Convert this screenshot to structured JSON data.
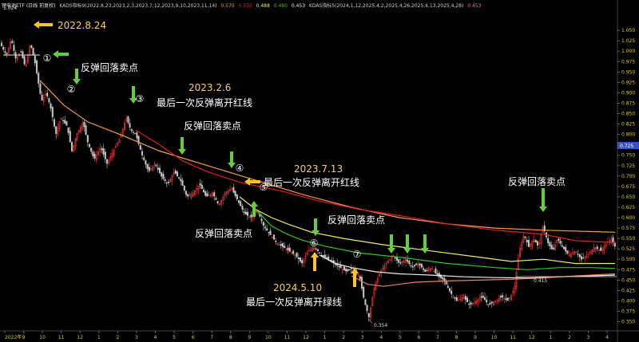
{
  "header": {
    "title": "锂电池ETF (日线 前复权)",
    "indicator_a": "KADS指标9(2022,8,23,2023,2,3,2023,7,12,2023,9,10,2023,11,14)",
    "a_val1": "0.575",
    "a_val2": "0.555",
    "a_val3": "0.488",
    "a_val4": "0.480",
    "a_val5": "0.453",
    "indicator_b": "KDAS指标5(2024,1,12,2025,4,2,2025,4,26,2025,4,13,2025,4,28)",
    "b_val1": "0.453"
  },
  "colors": {
    "background": "#000000",
    "candle_up": "#ff3b3b",
    "candle_down": "#c9c9c9",
    "line_orange": "#f39c4a",
    "line_red": "#e02020",
    "line_yellow": "#f0f050",
    "line_green": "#28c828",
    "line_white": "#eeeeee",
    "line_salmon": "#f08060",
    "annotation_text": "#ffd24a",
    "arrow_green": "#66cc44",
    "arrow_yellow": "#ffc51f",
    "axis_text": "#d9c84c",
    "price_tag": "#3a4fd0"
  },
  "chart_data": {
    "type": "candlestick",
    "y_axis": {
      "side": "right",
      "ylim": [
        0.33,
        1.1
      ],
      "ticks": [
        "1.050",
        "1.025",
        "1.000",
        "0.975",
        "0.950",
        "0.925",
        "0.900",
        "0.875",
        "0.850",
        "0.825",
        "0.800",
        "0.775",
        "0.750",
        "0.725",
        "0.700",
        "0.675",
        "0.650",
        "0.625",
        "0.600",
        "0.575",
        "0.550",
        "0.525",
        "0.500",
        "0.475",
        "0.450",
        "0.425",
        "0.400",
        "0.375",
        "0.350"
      ]
    },
    "x_axis": {
      "month_labels": [
        "2022年",
        "9",
        "10",
        "11",
        "12",
        "1",
        "2",
        "3",
        "4",
        "5",
        "6",
        "7",
        "8",
        "9",
        "10",
        "11",
        "12",
        "1",
        "2",
        "3",
        "4",
        "5",
        "6",
        "7",
        "8",
        "9",
        "10",
        "11",
        "12",
        "1",
        "2",
        "3",
        "4"
      ]
    },
    "current_price_tag": "0.725",
    "peak_label": "1.024",
    "low_label": "0.354",
    "low2_label": "0.415",
    "price_path": [
      [
        0,
        1.02
      ],
      [
        8,
        0.99
      ],
      [
        14,
        1.03
      ],
      [
        20,
        0.98
      ],
      [
        26,
        1.0
      ],
      [
        32,
        0.96
      ],
      [
        38,
        1.02
      ],
      [
        44,
        0.97
      ],
      [
        52,
        0.88
      ],
      [
        58,
        0.9
      ],
      [
        64,
        0.86
      ],
      [
        70,
        0.8
      ],
      [
        76,
        0.84
      ],
      [
        84,
        0.82
      ],
      [
        90,
        0.76
      ],
      [
        96,
        0.8
      ],
      [
        104,
        0.83
      ],
      [
        110,
        0.78
      ],
      [
        118,
        0.74
      ],
      [
        126,
        0.77
      ],
      [
        134,
        0.73
      ],
      [
        142,
        0.76
      ],
      [
        150,
        0.79
      ],
      [
        158,
        0.84
      ],
      [
        164,
        0.81
      ],
      [
        170,
        0.8
      ],
      [
        178,
        0.75
      ],
      [
        186,
        0.71
      ],
      [
        194,
        0.73
      ],
      [
        202,
        0.7
      ],
      [
        210,
        0.68
      ],
      [
        218,
        0.71
      ],
      [
        226,
        0.69
      ],
      [
        234,
        0.65
      ],
      [
        242,
        0.66
      ],
      [
        250,
        0.68
      ],
      [
        258,
        0.65
      ],
      [
        266,
        0.66
      ],
      [
        274,
        0.63
      ],
      [
        282,
        0.66
      ],
      [
        290,
        0.67
      ],
      [
        298,
        0.64
      ],
      [
        306,
        0.61
      ],
      [
        314,
        0.6
      ],
      [
        322,
        0.62
      ],
      [
        330,
        0.58
      ],
      [
        338,
        0.56
      ],
      [
        346,
        0.54
      ],
      [
        354,
        0.53
      ],
      [
        362,
        0.52
      ],
      [
        370,
        0.51
      ],
      [
        378,
        0.49
      ],
      [
        386,
        0.52
      ],
      [
        394,
        0.53
      ],
      [
        402,
        0.51
      ],
      [
        410,
        0.5
      ],
      [
        418,
        0.49
      ],
      [
        426,
        0.48
      ],
      [
        434,
        0.47
      ],
      [
        442,
        0.48
      ],
      [
        450,
        0.46
      ],
      [
        456,
        0.4
      ],
      [
        462,
        0.36
      ],
      [
        468,
        0.43
      ],
      [
        476,
        0.47
      ],
      [
        484,
        0.49
      ],
      [
        492,
        0.51
      ],
      [
        500,
        0.49
      ],
      [
        508,
        0.5
      ],
      [
        516,
        0.48
      ],
      [
        524,
        0.49
      ],
      [
        532,
        0.47
      ],
      [
        540,
        0.48
      ],
      [
        548,
        0.46
      ],
      [
        556,
        0.45
      ],
      [
        564,
        0.42
      ],
      [
        572,
        0.4
      ],
      [
        580,
        0.41
      ],
      [
        588,
        0.39
      ],
      [
        596,
        0.4
      ],
      [
        604,
        0.41
      ],
      [
        612,
        0.39
      ],
      [
        620,
        0.4
      ],
      [
        628,
        0.41
      ],
      [
        636,
        0.4
      ],
      [
        644,
        0.43
      ],
      [
        650,
        0.52
      ],
      [
        656,
        0.56
      ],
      [
        662,
        0.53
      ],
      [
        668,
        0.55
      ],
      [
        674,
        0.53
      ],
      [
        680,
        0.58
      ],
      [
        686,
        0.54
      ],
      [
        692,
        0.52
      ],
      [
        698,
        0.55
      ],
      [
        704,
        0.53
      ],
      [
        712,
        0.51
      ],
      [
        720,
        0.52
      ],
      [
        728,
        0.5
      ],
      [
        736,
        0.51
      ],
      [
        744,
        0.53
      ],
      [
        752,
        0.52
      ],
      [
        760,
        0.54
      ],
      [
        766,
        0.55
      ],
      [
        770,
        0.53
      ]
    ],
    "ma_lines": [
      {
        "color_key": "line_orange",
        "points": [
          [
            50,
            0.93
          ],
          [
            80,
            0.87
          ],
          [
            110,
            0.83
          ],
          [
            150,
            0.8
          ],
          [
            200,
            0.76
          ],
          [
            260,
            0.725
          ],
          [
            320,
            0.69
          ],
          [
            380,
            0.655
          ],
          [
            440,
            0.625
          ],
          [
            500,
            0.6
          ],
          [
            560,
            0.585
          ],
          [
            620,
            0.575
          ],
          [
            680,
            0.57
          ],
          [
            770,
            0.565
          ]
        ]
      },
      {
        "color_key": "line_red",
        "points": [
          [
            170,
            0.81
          ],
          [
            200,
            0.775
          ],
          [
            230,
            0.735
          ],
          [
            260,
            0.71
          ],
          [
            300,
            0.685
          ],
          [
            350,
            0.665
          ],
          [
            400,
            0.64
          ],
          [
            450,
            0.62
          ],
          [
            500,
            0.605
          ],
          [
            560,
            0.585
          ],
          [
            620,
            0.57
          ],
          [
            680,
            0.56
          ],
          [
            720,
            0.545
          ],
          [
            770,
            0.54
          ]
        ]
      },
      {
        "color_key": "line_yellow",
        "points": [
          [
            300,
            0.65
          ],
          [
            320,
            0.62
          ],
          [
            340,
            0.6
          ],
          [
            360,
            0.585
          ],
          [
            390,
            0.565
          ],
          [
            430,
            0.55
          ],
          [
            480,
            0.535
          ],
          [
            540,
            0.52
          ],
          [
            600,
            0.505
          ],
          [
            640,
            0.495
          ],
          [
            680,
            0.5
          ],
          [
            720,
            0.49
          ],
          [
            770,
            0.49
          ]
        ]
      },
      {
        "color_key": "line_green",
        "points": [
          [
            320,
            0.62
          ],
          [
            340,
            0.58
          ],
          [
            360,
            0.56
          ],
          [
            380,
            0.545
          ],
          [
            410,
            0.53
          ],
          [
            450,
            0.515
          ],
          [
            500,
            0.505
          ],
          [
            560,
            0.49
          ],
          [
            620,
            0.48
          ],
          [
            660,
            0.475
          ],
          [
            700,
            0.48
          ],
          [
            740,
            0.48
          ],
          [
            770,
            0.478
          ]
        ]
      },
      {
        "color_key": "line_white",
        "points": [
          [
            400,
            0.51
          ],
          [
            420,
            0.49
          ],
          [
            440,
            0.48
          ],
          [
            470,
            0.47
          ],
          [
            500,
            0.465
          ],
          [
            540,
            0.462
          ],
          [
            580,
            0.458
          ],
          [
            620,
            0.456
          ],
          [
            660,
            0.455
          ],
          [
            700,
            0.458
          ],
          [
            740,
            0.46
          ],
          [
            770,
            0.462
          ]
        ]
      },
      {
        "color_key": "line_salmon",
        "points": [
          [
            440,
            0.46
          ],
          [
            460,
            0.44
          ],
          [
            480,
            0.435
          ],
          [
            520,
            0.445
          ],
          [
            560,
            0.448
          ],
          [
            600,
            0.45
          ],
          [
            640,
            0.452
          ],
          [
            680,
            0.455
          ],
          [
            720,
            0.46
          ],
          [
            770,
            0.465
          ]
        ]
      }
    ],
    "annotations": [
      {
        "id": "date1",
        "text": "2022.8.24"
      },
      {
        "id": "sell1",
        "text": "反弹回落卖点"
      },
      {
        "id": "date2",
        "text": "2023.2.6"
      },
      {
        "id": "last_red1",
        "text": "最后一次反弹离开红线"
      },
      {
        "id": "sell2",
        "text": "反弹回落卖点"
      },
      {
        "id": "date3",
        "text": "2023.7.13"
      },
      {
        "id": "last_red2",
        "text": "最后一次反弹离开红线"
      },
      {
        "id": "sell3",
        "text": "反弹回落卖点"
      },
      {
        "id": "sell4",
        "text": "反弹回落卖点"
      },
      {
        "id": "sell5",
        "text": "反弹回落卖点"
      },
      {
        "id": "date4",
        "text": "2024.5.10"
      },
      {
        "id": "last_green",
        "text": "最后一次反弹离开绿线"
      }
    ],
    "circle_markers": [
      "①",
      "②",
      "③",
      "④",
      "⑤",
      "⑥",
      "⑦"
    ]
  }
}
